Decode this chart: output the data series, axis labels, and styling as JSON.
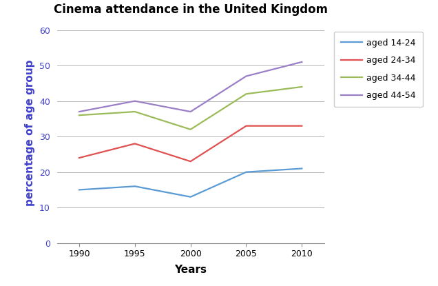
{
  "title": "Cinema attendance in the United Kingdom",
  "xlabel": "Years",
  "ylabel": "percentage of age group",
  "years": [
    1990,
    1995,
    2000,
    2005,
    2010
  ],
  "series": [
    {
      "label": "aged 14-24",
      "color": "#5B9BD5",
      "values": [
        15,
        16,
        13,
        20,
        21
      ]
    },
    {
      "label": "aged 24-34",
      "color": "#E05050",
      "values": [
        24,
        28,
        23,
        33,
        33
      ]
    },
    {
      "label": "aged 34-44",
      "color": "#9BBB59",
      "values": [
        36,
        37,
        32,
        42,
        44
      ]
    },
    {
      "label": "aged 44-54",
      "color": "#9B7EC8",
      "values": [
        37,
        40,
        37,
        47,
        51
      ]
    }
  ],
  "ylim": [
    0,
    62
  ],
  "yticks": [
    0,
    10,
    20,
    30,
    40,
    50,
    60
  ],
  "background_color": "#ffffff",
  "grid_color": "#aaaaaa",
  "title_fontsize": 12,
  "axis_label_fontsize": 11,
  "legend_fontsize": 9,
  "tick_fontsize": 9,
  "ylabel_color": "#4040CC",
  "ytick_color": "#4040CC",
  "linewidth": 1.6
}
